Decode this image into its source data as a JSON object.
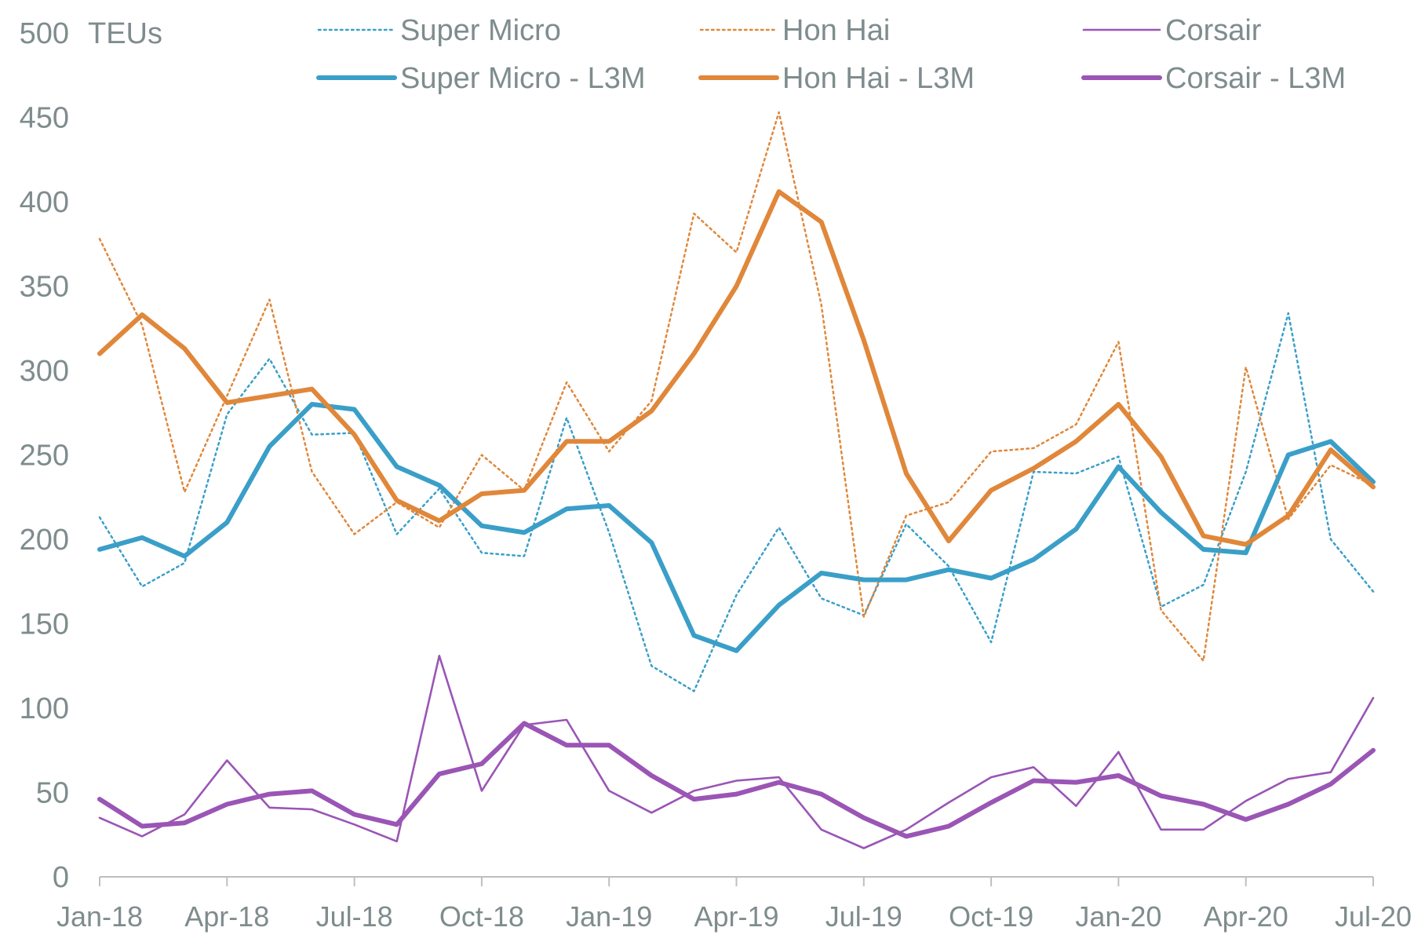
{
  "chart_data": {
    "type": "line",
    "title": "",
    "ylabel": "TEUs",
    "xlabel": "",
    "ylim": [
      0,
      500
    ],
    "yticks": [
      0,
      50,
      100,
      150,
      200,
      250,
      300,
      350,
      400,
      450,
      500
    ],
    "x_tick_labels": [
      "Jan-18",
      "Apr-18",
      "Jul-18",
      "Oct-18",
      "Jan-19",
      "Apr-19",
      "Jul-19",
      "Oct-19",
      "Jan-20",
      "Apr-20",
      "Jul-20"
    ],
    "x_tick_every": 3,
    "months": [
      "Jan-18",
      "Feb-18",
      "Mar-18",
      "Apr-18",
      "May-18",
      "Jun-18",
      "Jul-18",
      "Aug-18",
      "Sep-18",
      "Oct-18",
      "Nov-18",
      "Dec-18",
      "Jan-19",
      "Feb-19",
      "Mar-19",
      "Apr-19",
      "May-19",
      "Jun-19",
      "Jul-19",
      "Aug-19",
      "Sep-19",
      "Oct-19",
      "Nov-19",
      "Dec-19",
      "Jan-20",
      "Feb-20",
      "Mar-20",
      "Apr-20",
      "May-20",
      "Jun-20",
      "Jul-20"
    ],
    "series": [
      {
        "name": "Super Micro",
        "style": "dotted",
        "color": "#3a9fc8",
        "values": [
          213,
          172,
          186,
          274,
          307,
          262,
          263,
          203,
          230,
          192,
          190,
          272,
          204,
          125,
          110,
          167,
          207,
          165,
          155,
          209,
          184,
          139,
          240,
          239,
          249,
          160,
          173,
          240,
          334,
          200,
          169
        ]
      },
      {
        "name": "Hon Hai",
        "style": "dotted",
        "color": "#e0873a",
        "values": [
          378,
          327,
          228,
          285,
          342,
          240,
          203,
          222,
          207,
          250,
          229,
          293,
          252,
          282,
          393,
          370,
          453,
          339,
          154,
          214,
          222,
          252,
          254,
          268,
          317,
          158,
          128,
          302,
          212,
          244,
          232
        ]
      },
      {
        "name": "Corsair",
        "style": "thin",
        "color": "#9a55b5",
        "values": [
          35,
          24,
          37,
          69,
          41,
          40,
          31,
          21,
          131,
          51,
          90,
          93,
          51,
          38,
          51,
          57,
          59,
          28,
          17,
          28,
          44,
          59,
          65,
          42,
          74,
          28,
          28,
          45,
          58,
          62,
          106
        ]
      },
      {
        "name": "Super Micro - L3M",
        "style": "thick",
        "color": "#3a9fc8",
        "values": [
          194,
          201,
          190,
          210,
          255,
          280,
          277,
          243,
          232,
          208,
          204,
          218,
          220,
          198,
          143,
          134,
          161,
          180,
          176,
          176,
          182,
          177,
          188,
          206,
          243,
          216,
          194,
          192,
          250,
          258,
          234
        ]
      },
      {
        "name": "Hon Hai - L3M",
        "style": "thick",
        "color": "#e0873a",
        "values": [
          310,
          333,
          313,
          281,
          285,
          289,
          262,
          223,
          211,
          227,
          229,
          258,
          258,
          276,
          310,
          350,
          406,
          388,
          318,
          239,
          199,
          229,
          242,
          258,
          280,
          249,
          202,
          197,
          214,
          253,
          231
        ]
      },
      {
        "name": "Corsair - L3M",
        "style": "thick",
        "color": "#9a55b5",
        "values": [
          46,
          30,
          32,
          43,
          49,
          51,
          37,
          31,
          61,
          67,
          91,
          78,
          78,
          60,
          46,
          49,
          56,
          49,
          35,
          24,
          30,
          44,
          57,
          56,
          60,
          48,
          43,
          34,
          43,
          55,
          75
        ]
      }
    ],
    "legend": [
      {
        "label": "Super Micro",
        "style": "dotted",
        "color": "#3a9fc8"
      },
      {
        "label": "Hon Hai",
        "style": "dotted",
        "color": "#e0873a"
      },
      {
        "label": "Corsair",
        "style": "thin",
        "color": "#9a55b5"
      },
      {
        "label": "Super Micro - L3M",
        "style": "thick",
        "color": "#3a9fc8"
      },
      {
        "label": "Hon Hai - L3M",
        "style": "thick",
        "color": "#e0873a"
      },
      {
        "label": "Corsair - L3M",
        "style": "thick",
        "color": "#9a55b5"
      }
    ],
    "legend_position": "top",
    "grid": false
  }
}
